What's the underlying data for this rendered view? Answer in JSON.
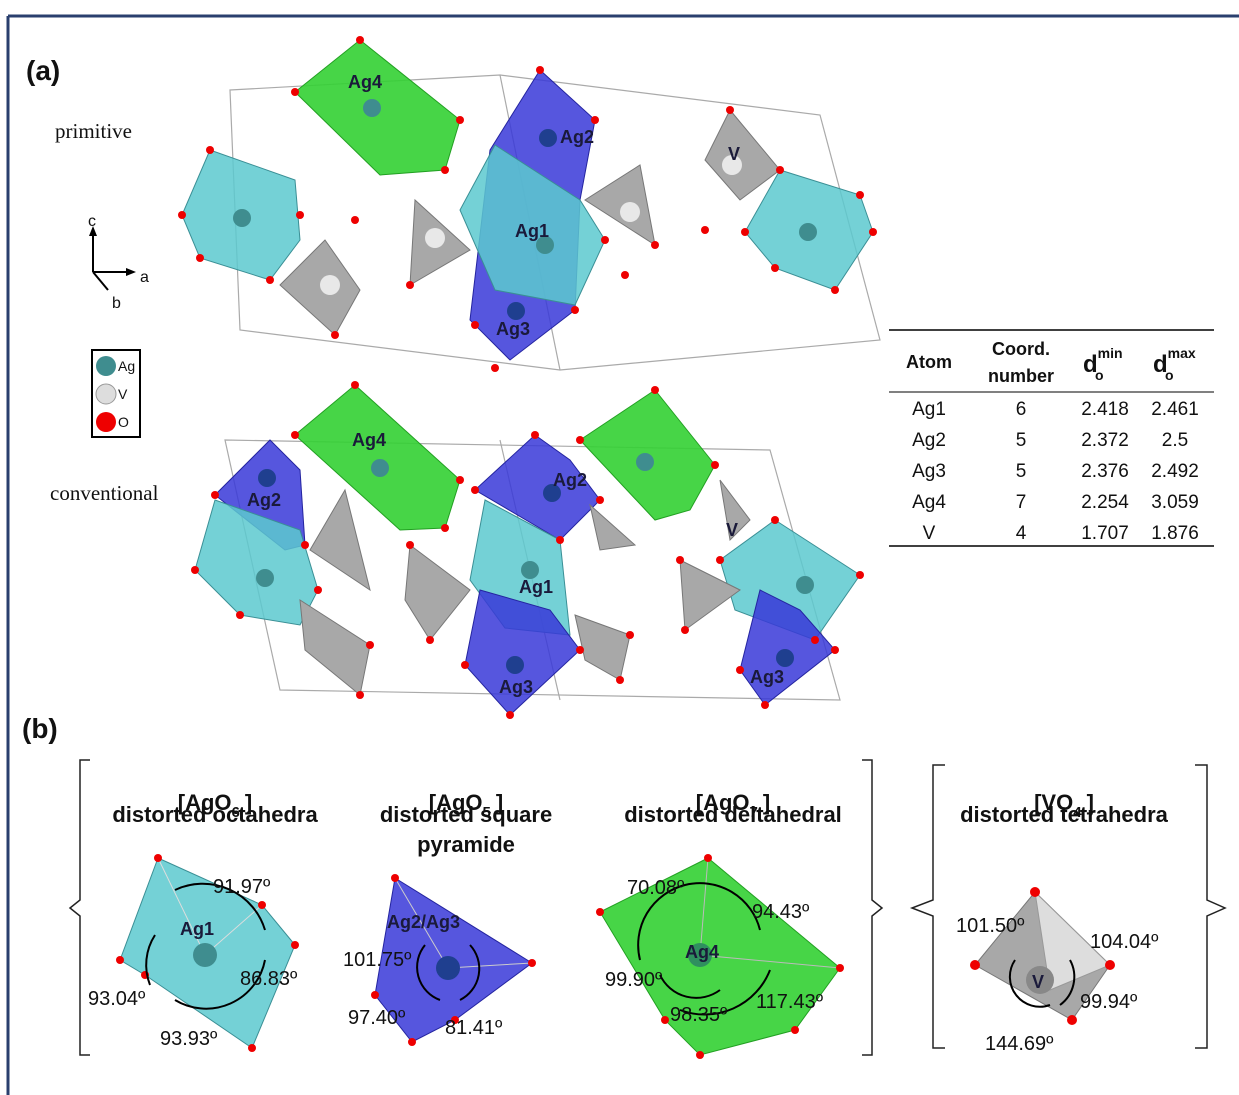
{
  "panel_a": {
    "label": "(a)",
    "primitive_label": "primitive",
    "conventional_label": "conventional",
    "axes": {
      "c": "c",
      "a": "a",
      "b": "b"
    },
    "legend": [
      "Ag",
      "V",
      "O"
    ],
    "primitive_atoms": [
      "Ag4",
      "Ag2",
      "V",
      "Ag1",
      "Ag3"
    ],
    "conventional_atoms": [
      "Ag4",
      "Ag2",
      "Ag2",
      "V",
      "Ag1",
      "Ag3",
      "Ag3"
    ],
    "table": {
      "header": {
        "atom": "Atom",
        "coord": [
          "Coord.",
          "number"
        ],
        "dmin": {
          "base": "d",
          "sub": "o",
          "sup": "min"
        },
        "dmax": {
          "base": "d",
          "sub": "o",
          "sup": "max"
        }
      },
      "rows": [
        [
          "Ag1",
          6,
          2.418,
          2.461
        ],
        [
          "Ag2",
          5,
          2.372,
          2.5
        ],
        [
          "Ag3",
          5,
          2.376,
          2.492
        ],
        [
          "Ag4",
          7,
          2.254,
          3.059
        ],
        [
          "V",
          4,
          1.707,
          1.876
        ]
      ]
    }
  },
  "panel_b": {
    "label": "(b)",
    "groups": [
      {
        "formula": "[AgO",
        "sub": "6",
        "close": "]",
        "description": [
          "distorted octahedra"
        ],
        "center": "Ag1",
        "angles": [
          "91.97º",
          "86.83º",
          "93.93º",
          "93.04º"
        ]
      },
      {
        "formula": "[AgO",
        "sub": "5",
        "close": "]",
        "description": [
          "distorted square",
          "pyramide"
        ],
        "center": "Ag2/Ag3",
        "angles": [
          "101.75º",
          "97.40º",
          "81.41º"
        ]
      },
      {
        "formula": "[AgO",
        "sub": "7",
        "close": "]",
        "description": [
          "distorted deltahedral"
        ],
        "center": "Ag4",
        "angles": [
          "70.08º",
          "94.43º",
          "99.90º",
          "98.35º",
          "117.43º"
        ]
      },
      {
        "formula": "[VO",
        "sub": "4",
        "close": "]",
        "description": [
          "distorted tetrahedra"
        ],
        "center": "V",
        "angles": [
          "101.50º",
          "104.04º",
          "144.69º",
          "99.94º"
        ]
      }
    ]
  }
}
